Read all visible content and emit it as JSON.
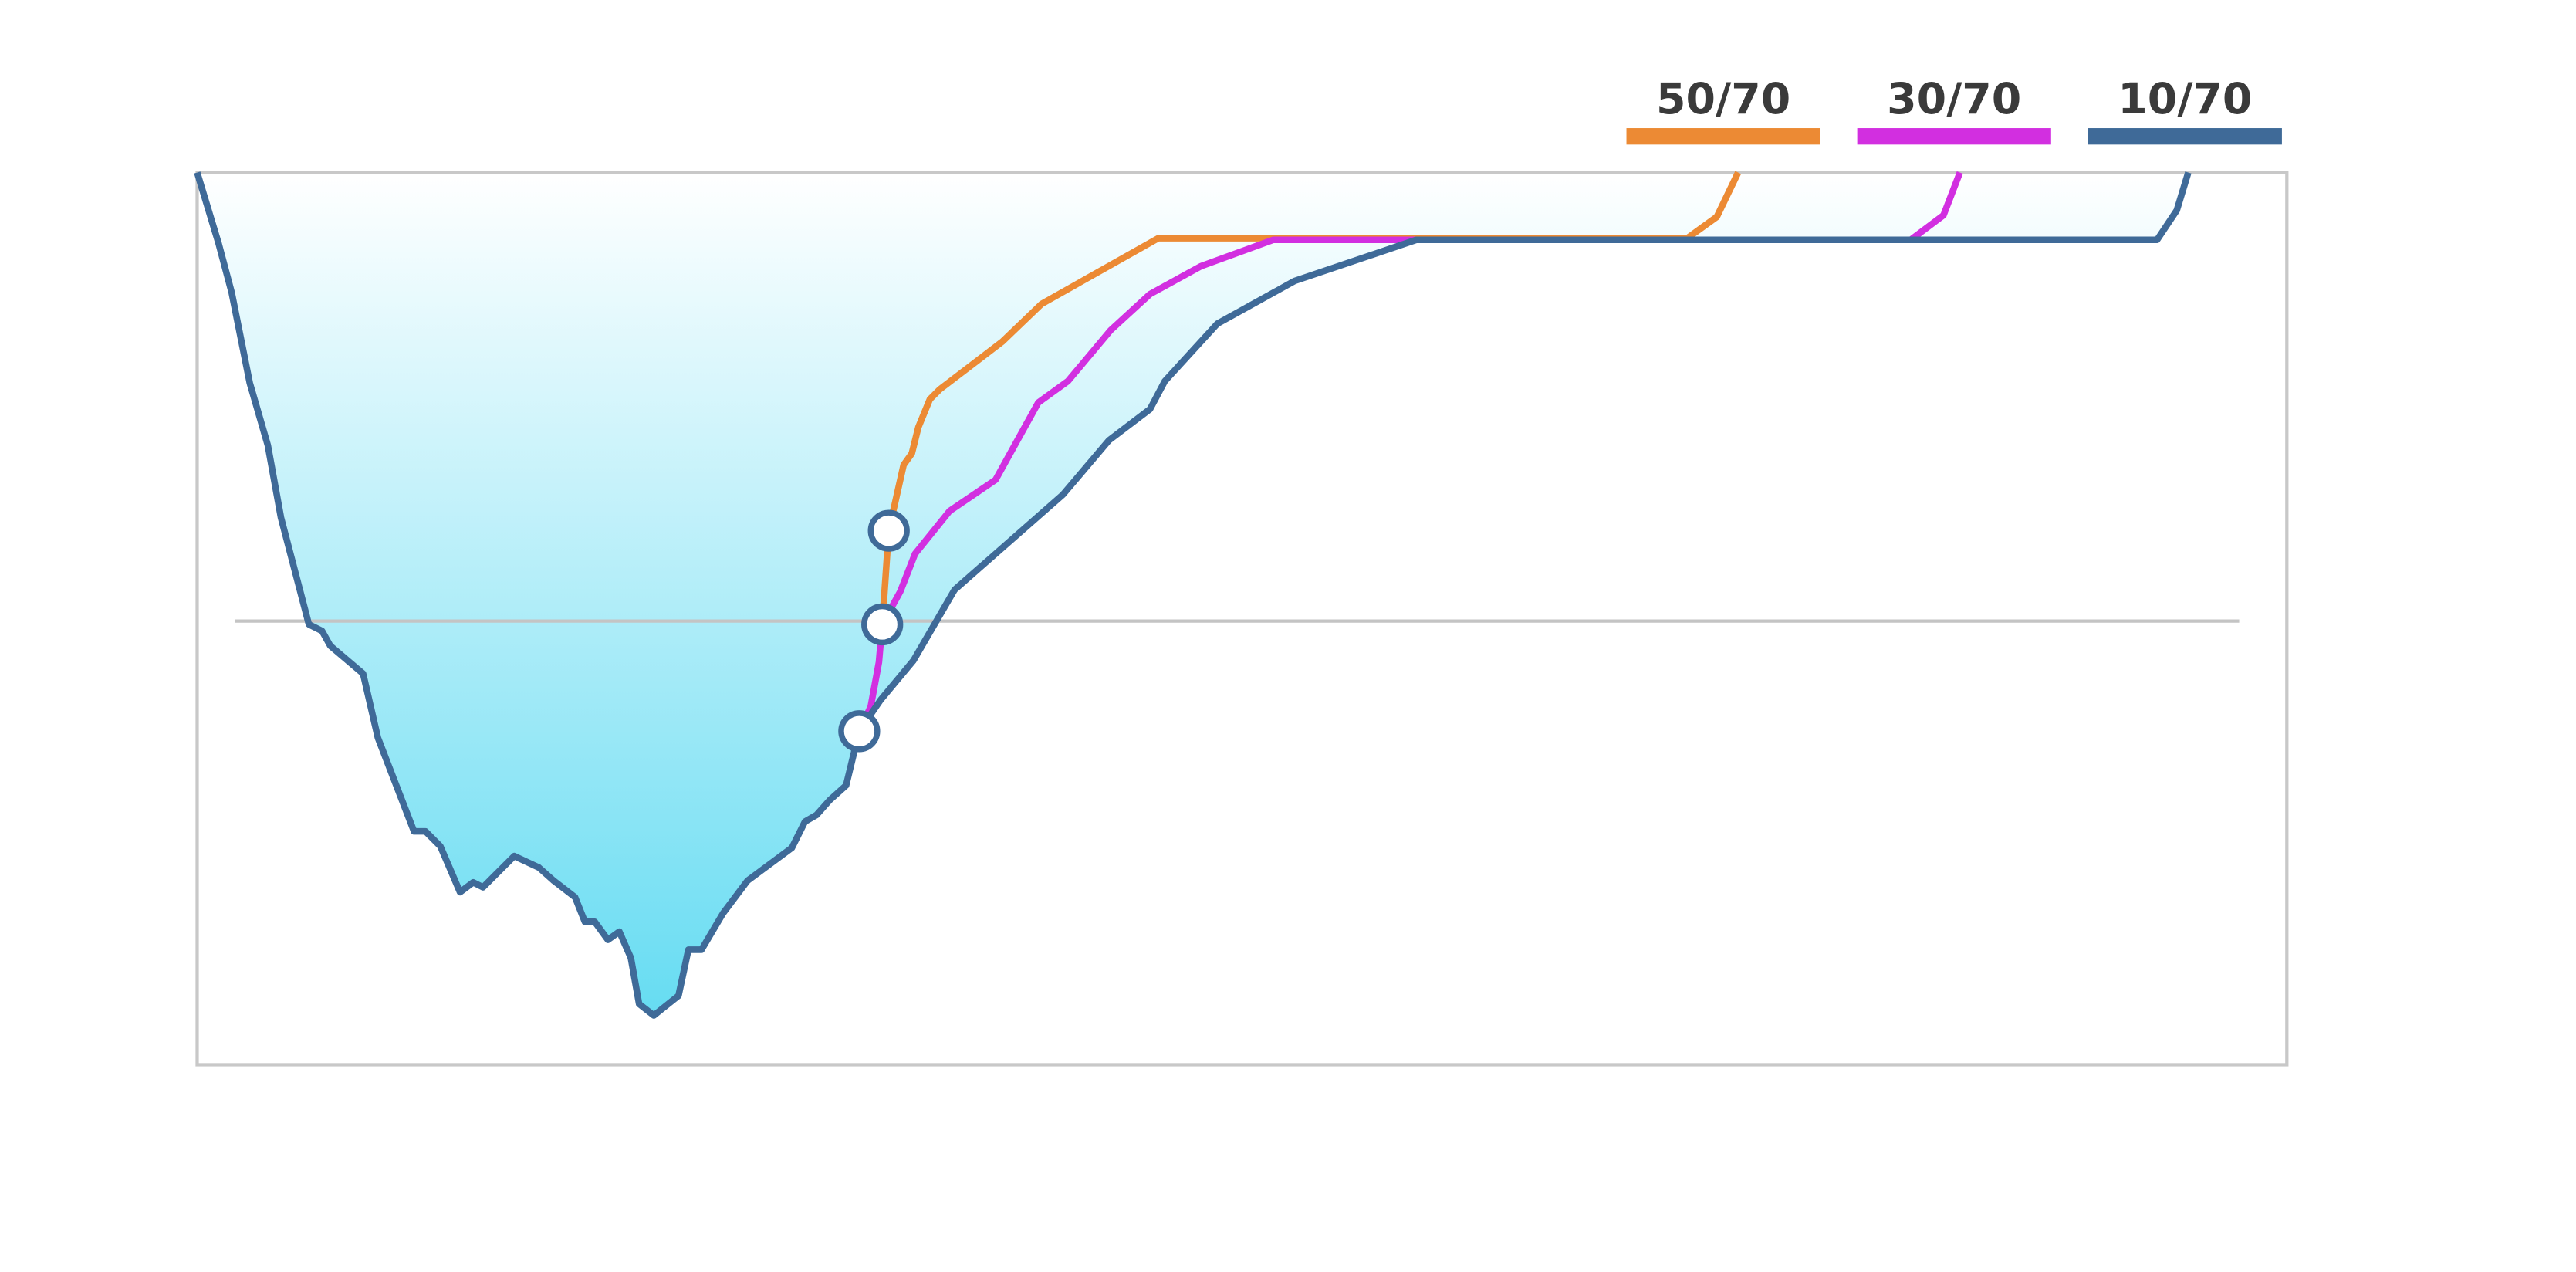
{
  "chart_data": {
    "type": "line",
    "xlim": [
      0,
      1272
    ],
    "ylim": [
      0,
      543
    ],
    "frame_color": "#c8c8c8",
    "reference_line": 270,
    "reference_color": "#c4c4c4",
    "fill_series": 2,
    "fill_colors": [
      "#ffffff",
      "#66dcf2"
    ],
    "marker_fill": "#ffffff",
    "marker_stroke": "#3f6a98",
    "series": [
      {
        "name": "50/70",
        "color": "#ec8a34",
        "x": [
          417,
          421,
          430,
          435,
          439,
          446,
          452,
          490,
          514,
          585,
          907,
          925,
          938
        ],
        "values": [
          268,
          325,
          365,
          372,
          388,
          405,
          411,
          440,
          463,
          503,
          503,
          516,
          543
        ],
        "marked_points": [
          1
        ]
      },
      {
        "name": "30/70",
        "color": "#d22fe0",
        "x": [
          403,
          410,
          415,
          417,
          428,
          437,
          458,
          486,
          512,
          530,
          556,
          580,
          611,
          655,
          1043,
          1063,
          1073
        ],
        "values": [
          203,
          218,
          245,
          268,
          288,
          311,
          337,
          356,
          403,
          416,
          447,
          469,
          486,
          502,
          502,
          517,
          543
        ],
        "marked_points": [
          3
        ]
      },
      {
        "name": "10/70",
        "color": "#3f6a98",
        "x": [
          0,
          13,
          21,
          32,
          43,
          51,
          68,
          76,
          81,
          101,
          110,
          132,
          139,
          148,
          160,
          168,
          174,
          193,
          208,
          217,
          230,
          236,
          242,
          250,
          257,
          264,
          269,
          278,
          293,
          299,
          307,
          320,
          335,
          362,
          370,
          377,
          385,
          395,
          403,
          416,
          436,
          461,
          527,
          555,
          580,
          589,
          621,
          668,
          742,
          1193,
          1205,
          1212
        ],
        "values": [
          543,
          500,
          470,
          415,
          377,
          333,
          268,
          264,
          255,
          238,
          199,
          142,
          142,
          133,
          105,
          111,
          108,
          127,
          120,
          112,
          102,
          87,
          87,
          76,
          81,
          65,
          37,
          30,
          42,
          70,
          70,
          92,
          112,
          132,
          148,
          152,
          161,
          170,
          203,
          222,
          246,
          289,
          347,
          380,
          399,
          416,
          451,
          477,
          502,
          502,
          520,
          543
        ],
        "marked_points": [
          38
        ]
      }
    ]
  }
}
